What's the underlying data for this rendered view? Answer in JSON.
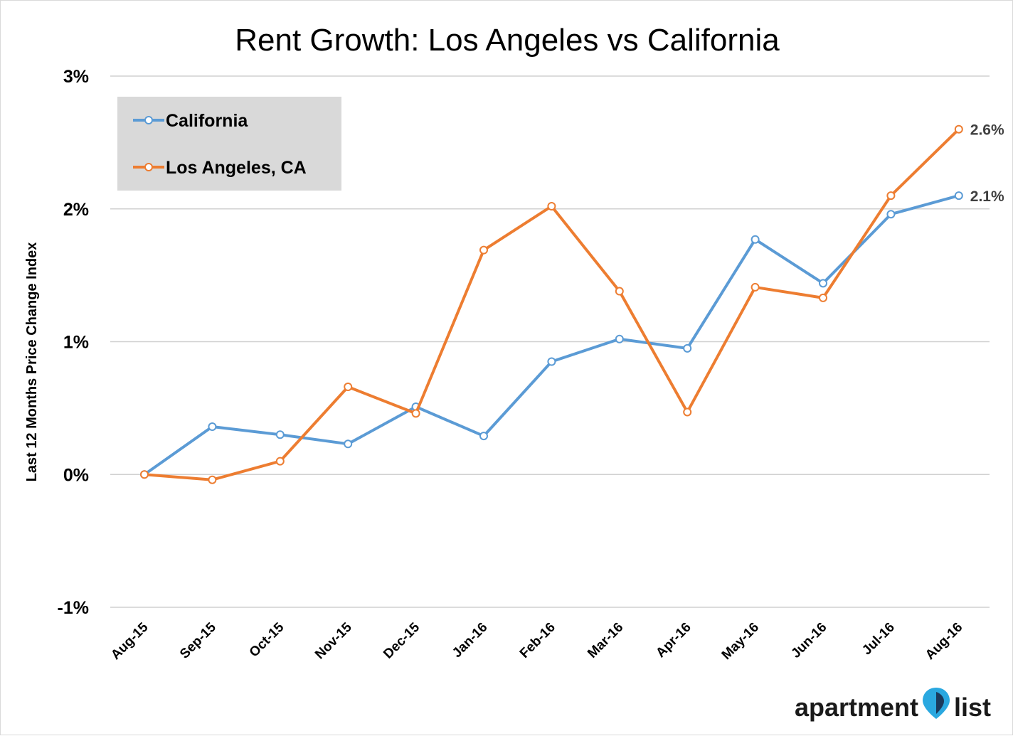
{
  "chart_data": {
    "type": "line",
    "title": "Rent Growth: Los Angeles vs California",
    "ylabel": "Last 12 Months Price Change Index",
    "xlabel": "",
    "ylim": [
      -1,
      3
    ],
    "yticks": [
      {
        "value": 3,
        "label": "3%"
      },
      {
        "value": 2,
        "label": "2%"
      },
      {
        "value": 1,
        "label": "1%"
      },
      {
        "value": 0,
        "label": "0%"
      },
      {
        "value": -1,
        "label": "-1%"
      }
    ],
    "categories": [
      "Aug-15",
      "Sep-15",
      "Oct-15",
      "Nov-15",
      "Dec-15",
      "Jan-16",
      "Feb-16",
      "Mar-16",
      "Apr-16",
      "May-16",
      "Jun-16",
      "Jul-16",
      "Aug-16"
    ],
    "grid": true,
    "legend_position": "top-left",
    "series": [
      {
        "name": "California",
        "color": "#5b9bd5",
        "values": [
          0.0,
          0.36,
          0.3,
          0.23,
          0.51,
          0.29,
          0.85,
          1.02,
          0.95,
          1.77,
          1.44,
          1.96,
          2.1
        ],
        "end_label": "2.1%"
      },
      {
        "name": "Los Angeles, CA",
        "color": "#ed7d31",
        "values": [
          0.0,
          -0.04,
          0.1,
          0.66,
          0.46,
          1.69,
          2.02,
          1.38,
          0.47,
          1.41,
          1.33,
          2.1,
          2.6
        ],
        "end_label": "2.6%"
      }
    ]
  },
  "branding": {
    "logo_left": "apartment",
    "logo_right": "list",
    "pin_color": "#2aa8e0",
    "pin_dark": "#1b3a5c",
    "icon": "map-pin-icon"
  }
}
